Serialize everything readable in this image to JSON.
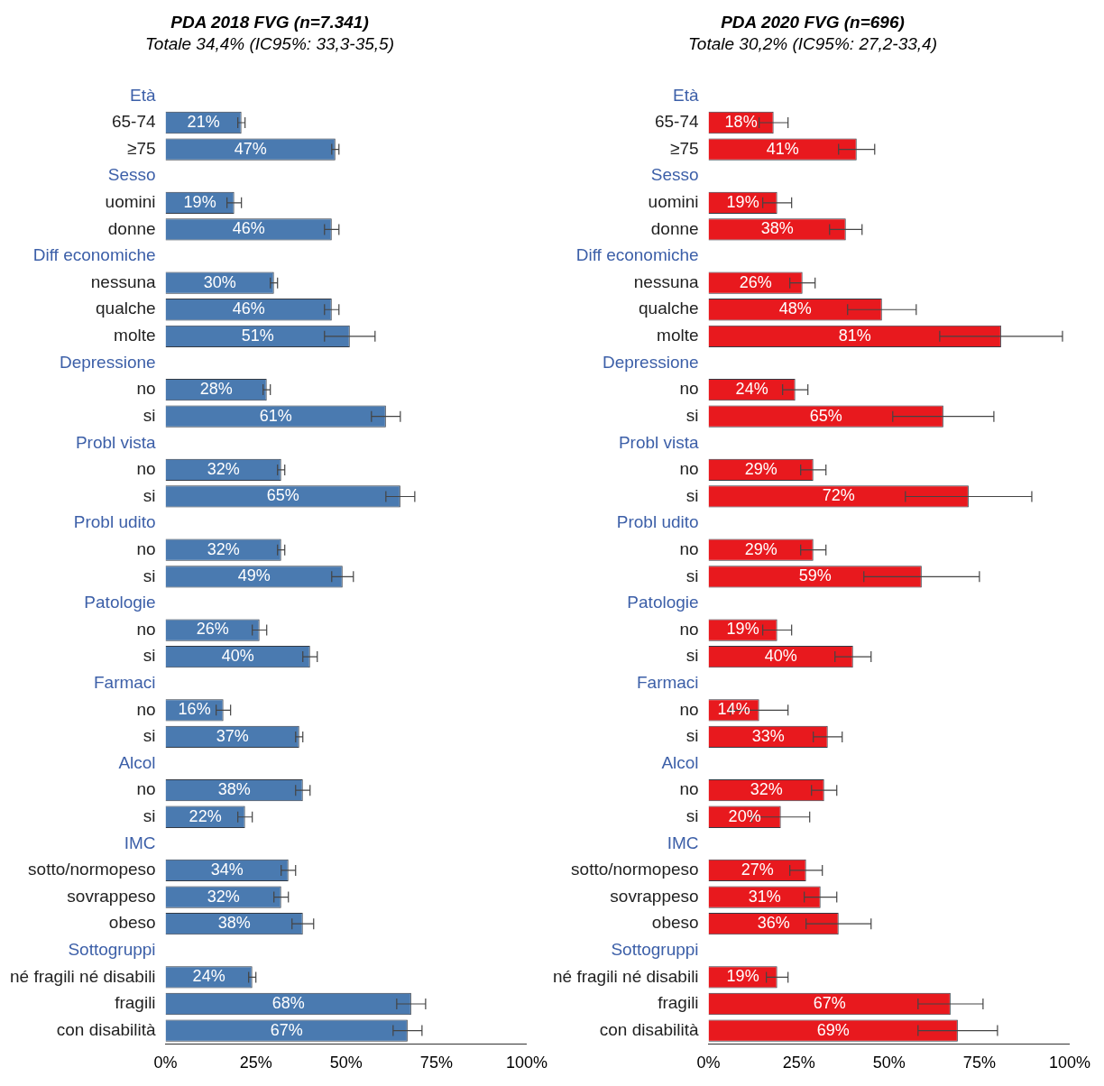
{
  "chart_data": [
    {
      "type": "bar",
      "orientation": "horizontal",
      "title": "PDA 2018 FVG (n=7.341)",
      "subtitle": "Totale 34,4% (IC95%: 33,3-35,5)",
      "categories": [
        "Età",
        "65-74",
        "≥75",
        "Sesso",
        "uomini",
        "donne",
        "Diff economiche",
        "nessuna",
        "qualche",
        "molte",
        "Depressione",
        "no",
        "si",
        "Probl vista",
        "no",
        "si",
        "Probl udito",
        "no",
        "si",
        "Patologie",
        "no",
        "si",
        "Farmaci",
        "no",
        "si",
        "Alcol",
        "no",
        "si",
        "IMC",
        "sotto/normopeso",
        "sovrappeso",
        "obeso",
        "Sottogruppi",
        "né fragili né disabili",
        "fragili",
        "con disabilità"
      ],
      "values": [
        null,
        21,
        47,
        null,
        19,
        46,
        null,
        30,
        46,
        51,
        null,
        28,
        61,
        null,
        32,
        65,
        null,
        32,
        49,
        null,
        26,
        40,
        null,
        16,
        37,
        null,
        38,
        22,
        null,
        34,
        32,
        38,
        null,
        24,
        68,
        67
      ],
      "errors": [
        null,
        1,
        1,
        null,
        2,
        2,
        null,
        1,
        2,
        7,
        null,
        1,
        4,
        null,
        1,
        4,
        null,
        1,
        3,
        null,
        2,
        2,
        null,
        2,
        1,
        null,
        2,
        2,
        null,
        2,
        2,
        3,
        null,
        1,
        4,
        4
      ],
      "value_labels": [
        null,
        "21%",
        "47%",
        null,
        "19%",
        "46%",
        null,
        "30%",
        "46%",
        "51%",
        null,
        "28%",
        "61%",
        null,
        "32%",
        "65%",
        null,
        "32%",
        "49%",
        null,
        "26%",
        "40%",
        null,
        "16%",
        "37%",
        null,
        "38%",
        "22%",
        null,
        "34%",
        "32%",
        "38%",
        null,
        "24%",
        "68%",
        "67%"
      ],
      "color": "#4a7ab0",
      "xlim": [
        0,
        100
      ],
      "xticks": [
        {
          "value": 0,
          "label": "0%"
        },
        {
          "value": 25,
          "label": "25%"
        },
        {
          "value": 50,
          "label": "50%"
        },
        {
          "value": 75,
          "label": "75%"
        },
        {
          "value": 100,
          "label": "100%"
        }
      ]
    },
    {
      "type": "bar",
      "orientation": "horizontal",
      "title": "PDA 2020 FVG (n=696)",
      "subtitle": "Totale 30,2% (IC95%: 27,2-33,4)",
      "categories": [
        "Età",
        "65-74",
        "≥75",
        "Sesso",
        "uomini",
        "donne",
        "Diff economiche",
        "nessuna",
        "qualche",
        "molte",
        "Depressione",
        "no",
        "si",
        "Probl vista",
        "no",
        "si",
        "Probl udito",
        "no",
        "si",
        "Patologie",
        "no",
        "si",
        "Farmaci",
        "no",
        "si",
        "Alcol",
        "no",
        "si",
        "IMC",
        "sotto/normopeso",
        "sovrappeso",
        "obeso",
        "Sottogruppi",
        "né fragili né disabili",
        "fragili",
        "con disabilità"
      ],
      "values": [
        null,
        18,
        41,
        null,
        19,
        38,
        null,
        26,
        48,
        81,
        null,
        24,
        65,
        null,
        29,
        72,
        null,
        29,
        59,
        null,
        19,
        40,
        null,
        14,
        33,
        null,
        32,
        20,
        null,
        27,
        31,
        36,
        null,
        19,
        67,
        69
      ],
      "errors": [
        null,
        4,
        5,
        null,
        4,
        4.5,
        null,
        3.5,
        9.5,
        17,
        null,
        3.5,
        14,
        null,
        3.5,
        17.5,
        null,
        3.5,
        16,
        null,
        4,
        5,
        null,
        8,
        4,
        null,
        3.5,
        8,
        null,
        4.5,
        4.5,
        9,
        null,
        3,
        9,
        11
      ],
      "value_labels": [
        null,
        "18%",
        "41%",
        null,
        "19%",
        "38%",
        null,
        "26%",
        "48%",
        "81%",
        null,
        "24%",
        "65%",
        null,
        "29%",
        "72%",
        null,
        "29%",
        "59%",
        null,
        "19%",
        "40%",
        null,
        "14%",
        "33%",
        null,
        "32%",
        "20%",
        null,
        "27%",
        "31%",
        "36%",
        null,
        "19%",
        "67%",
        "69%"
      ],
      "color": "#e8191e",
      "xlim": [
        0,
        100
      ],
      "xticks": [
        {
          "value": 0,
          "label": "0%"
        },
        {
          "value": 25,
          "label": "25%"
        },
        {
          "value": 50,
          "label": "50%"
        },
        {
          "value": 75,
          "label": "75%"
        },
        {
          "value": 100,
          "label": "100%"
        }
      ]
    }
  ]
}
